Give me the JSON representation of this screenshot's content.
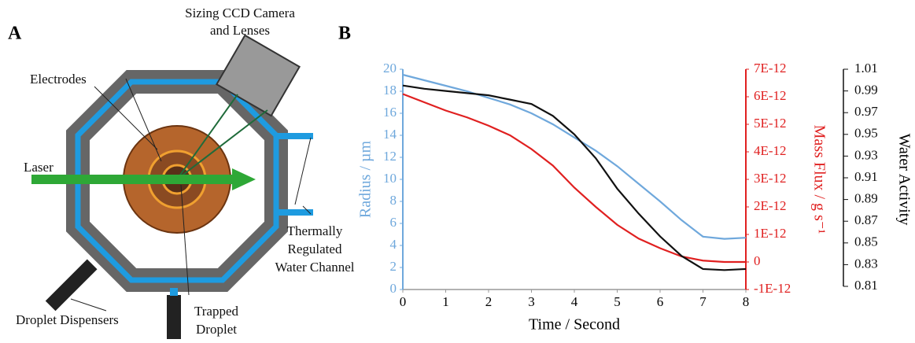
{
  "panel_a": {
    "letter": "A",
    "labels": [
      "Sizing CCD Camera",
      "and Lenses",
      "Electrodes",
      "Laser",
      "Thermally",
      "Regulated",
      "Water Channel",
      "Droplet Dispensers",
      "Trapped",
      "Droplet"
    ]
  },
  "chart_data": {
    "type": "line",
    "panel_letter": "B",
    "x_label": "Time / Second",
    "y_label": "Radius / µm",
    "y2_label": "Mass Flux / g s⁻¹",
    "y3_label": "Water Activity",
    "x": [
      0,
      0.5,
      1,
      1.5,
      2,
      2.5,
      3,
      3.5,
      4,
      4.5,
      5,
      5.5,
      6,
      6.5,
      7,
      7.5,
      8
    ],
    "xlim": [
      0,
      8
    ],
    "xticks": [
      0,
      1,
      2,
      3,
      4,
      5,
      6,
      7,
      8
    ],
    "ylim": [
      0,
      20
    ],
    "yticks": [
      0,
      2,
      4,
      6,
      8,
      10,
      12,
      14,
      16,
      18,
      20
    ],
    "y_color": "#6fa8dc",
    "y2lim": [
      -1e-12,
      7e-12
    ],
    "y2_color": "#e02020",
    "y2ticks": [
      {
        "value": -1e-12,
        "label": "-1E-12"
      },
      0,
      {
        "value": 1e-12,
        "label": "1E-12"
      },
      {
        "value": 2e-12,
        "label": "2E-12"
      },
      {
        "value": 3e-12,
        "label": "3E-12"
      },
      {
        "value": 4e-12,
        "label": "4E-12"
      },
      {
        "value": 5e-12,
        "label": "5E-12"
      },
      {
        "value": 6e-12,
        "label": "6E-12"
      },
      {
        "value": 7e-12,
        "label": "7E-12"
      }
    ],
    "y3lim": [
      0.81,
      1.01
    ],
    "y3_color": "#111111",
    "y3ticks": [
      0.81,
      0.83,
      0.85,
      0.87,
      0.89,
      0.91,
      0.93,
      0.95,
      0.97,
      0.99,
      1.01
    ],
    "series": [
      {
        "color": "#6fa8dc",
        "axis": "y",
        "values": [
          19.5,
          19,
          18.5,
          18,
          17.4,
          16.8,
          16,
          15,
          13.8,
          12.6,
          11.2,
          9.6,
          8,
          6.3,
          4.8,
          4.6,
          4.7
        ]
      },
      {
        "color": "#e02020",
        "axis": "y2",
        "values": [
          6.1e-12,
          5.8e-12,
          5.5e-12,
          5.25e-12,
          4.95e-12,
          4.6e-12,
          4.1e-12,
          3.5e-12,
          2.7e-12,
          2e-12,
          1.35e-12,
          8.5e-13,
          5e-13,
          2e-13,
          5e-14,
          0,
          0
        ]
      },
      {
        "color": "#111111",
        "axis": "y3",
        "values": [
          0.995,
          0.992,
          0.99,
          0.988,
          0.986,
          0.982,
          0.978,
          0.967,
          0.95,
          0.928,
          0.9,
          0.877,
          0.856,
          0.838,
          0.826,
          0.825,
          0.826
        ]
      }
    ]
  }
}
